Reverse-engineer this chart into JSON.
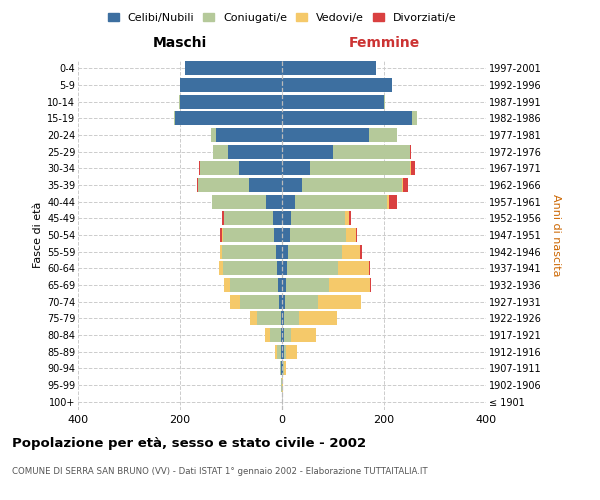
{
  "age_groups": [
    "100+",
    "95-99",
    "90-94",
    "85-89",
    "80-84",
    "75-79",
    "70-74",
    "65-69",
    "60-64",
    "55-59",
    "50-54",
    "45-49",
    "40-44",
    "35-39",
    "30-34",
    "25-29",
    "20-24",
    "15-19",
    "10-14",
    "5-9",
    "0-4"
  ],
  "birth_years": [
    "≤ 1901",
    "1902-1906",
    "1907-1911",
    "1912-1916",
    "1917-1921",
    "1922-1926",
    "1927-1931",
    "1932-1936",
    "1937-1941",
    "1942-1946",
    "1947-1951",
    "1952-1956",
    "1957-1961",
    "1962-1966",
    "1967-1971",
    "1972-1976",
    "1977-1981",
    "1982-1986",
    "1987-1991",
    "1992-1996",
    "1997-2001"
  ],
  "males": {
    "celibi": [
      0,
      0,
      1,
      2,
      2,
      2,
      5,
      7,
      10,
      12,
      15,
      18,
      32,
      65,
      85,
      105,
      130,
      210,
      200,
      200,
      190
    ],
    "coniugati": [
      0,
      1,
      3,
      8,
      22,
      48,
      78,
      95,
      105,
      105,
      100,
      95,
      105,
      100,
      75,
      30,
      10,
      2,
      1,
      0,
      0
    ],
    "vedovi": [
      0,
      0,
      0,
      4,
      10,
      12,
      18,
      12,
      8,
      5,
      3,
      0,
      0,
      0,
      0,
      0,
      0,
      0,
      0,
      0,
      0
    ],
    "divorziati": [
      0,
      0,
      0,
      0,
      0,
      0,
      0,
      0,
      0,
      0,
      3,
      4,
      0,
      2,
      2,
      0,
      0,
      0,
      0,
      0,
      0
    ]
  },
  "females": {
    "nubili": [
      0,
      0,
      1,
      3,
      3,
      3,
      5,
      7,
      10,
      12,
      15,
      18,
      25,
      40,
      55,
      100,
      170,
      255,
      200,
      215,
      185
    ],
    "coniugate": [
      0,
      0,
      2,
      5,
      14,
      30,
      65,
      85,
      100,
      105,
      110,
      105,
      180,
      195,
      195,
      150,
      55,
      10,
      2,
      0,
      0
    ],
    "vedove": [
      0,
      1,
      5,
      22,
      50,
      75,
      85,
      80,
      60,
      35,
      20,
      8,
      5,
      3,
      2,
      0,
      0,
      0,
      0,
      0,
      0
    ],
    "divorziate": [
      0,
      0,
      0,
      0,
      0,
      0,
      0,
      3,
      3,
      5,
      3,
      4,
      15,
      10,
      8,
      3,
      0,
      0,
      0,
      0,
      0
    ]
  },
  "colors": {
    "celibi": "#3d6fa0",
    "coniugati": "#b5c99a",
    "vedovi": "#f5c96a",
    "divorziati": "#d94040"
  },
  "legend_labels": [
    "Celibi/Nubili",
    "Coniugati/e",
    "Vedovi/e",
    "Divorziati/e"
  ],
  "title_main": "Popolazione per età, sesso e stato civile - 2002",
  "title_sub": "COMUNE DI SERRA SAN BRUNO (VV) - Dati ISTAT 1° gennaio 2002 - Elaborazione TUTTAITALIA.IT",
  "xlabel_left": "Maschi",
  "xlabel_right": "Femmine",
  "ylabel_left": "Fasce di età",
  "ylabel_right": "Anni di nascita",
  "xlim": 400
}
